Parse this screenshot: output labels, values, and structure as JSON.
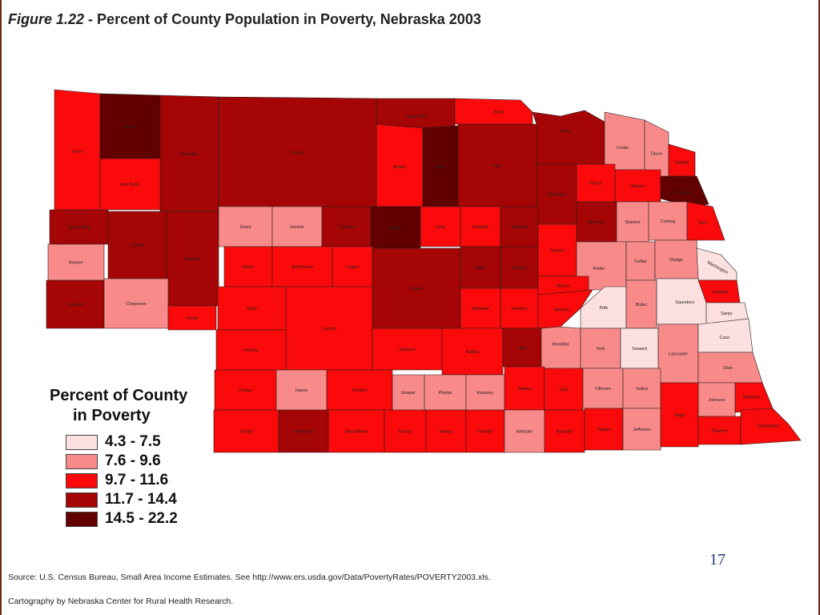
{
  "title": {
    "figure": "Figure 1.22",
    "separator": " - ",
    "text": "Percent of County Population in Poverty, Nebraska 2003"
  },
  "legend": {
    "title_line1": "Percent of County",
    "title_line2": "in Poverty",
    "classes": [
      {
        "label": "4.3 - 7.5",
        "color": "#fde0e0"
      },
      {
        "label": "7.6 - 9.6",
        "color": "#f98a8a"
      },
      {
        "label": "9.7 - 11.6",
        "color": "#fa0a0a"
      },
      {
        "label": "11.7 - 14.4",
        "color": "#a50505"
      },
      {
        "label": "14.5 - 22.2",
        "color": "#620000"
      }
    ]
  },
  "counties": [
    {
      "name": "Sioux",
      "class": 2
    },
    {
      "name": "Dawes",
      "class": 4
    },
    {
      "name": "Sheridan",
      "class": 3
    },
    {
      "name": "Cherry",
      "class": 3
    },
    {
      "name": "Keya Paha",
      "class": 3
    },
    {
      "name": "Boyd",
      "class": 2
    },
    {
      "name": "Brown",
      "class": 2
    },
    {
      "name": "Rock",
      "class": 4
    },
    {
      "name": "Holt",
      "class": 3
    },
    {
      "name": "Knox",
      "class": 3
    },
    {
      "name": "Cedar",
      "class": 1
    },
    {
      "name": "Dixon",
      "class": 1
    },
    {
      "name": "Dakota",
      "class": 2
    },
    {
      "name": "Box Butte",
      "class": 2
    },
    {
      "name": "Antelope",
      "class": 3
    },
    {
      "name": "Pierce",
      "class": 2
    },
    {
      "name": "Wayne",
      "class": 2
    },
    {
      "name": "Thurston",
      "class": 4
    },
    {
      "name": "Scotts Bluff",
      "class": 3
    },
    {
      "name": "Morrill",
      "class": 3
    },
    {
      "name": "Garden",
      "class": 3
    },
    {
      "name": "Grant",
      "class": 1
    },
    {
      "name": "Hooker",
      "class": 1
    },
    {
      "name": "Thomas",
      "class": 3
    },
    {
      "name": "Blaine",
      "class": 4
    },
    {
      "name": "Loup",
      "class": 2
    },
    {
      "name": "Garfield",
      "class": 2
    },
    {
      "name": "Wheeler",
      "class": 3
    },
    {
      "name": "Madison",
      "class": 3
    },
    {
      "name": "Stanton",
      "class": 1
    },
    {
      "name": "Cuming",
      "class": 1
    },
    {
      "name": "Burt",
      "class": 2
    },
    {
      "name": "Banner",
      "class": 1
    },
    {
      "name": "Arthur",
      "class": 2
    },
    {
      "name": "McPherson",
      "class": 2
    },
    {
      "name": "Logan",
      "class": 2
    },
    {
      "name": "Custer",
      "class": 3
    },
    {
      "name": "Valley",
      "class": 3
    },
    {
      "name": "Greeley",
      "class": 3
    },
    {
      "name": "Boone",
      "class": 2
    },
    {
      "name": "Platte",
      "class": 1
    },
    {
      "name": "Colfax",
      "class": 1
    },
    {
      "name": "Dodge",
      "class": 1
    },
    {
      "name": "Washington",
      "class": 0
    },
    {
      "name": "Kimball",
      "class": 3
    },
    {
      "name": "Cheyenne",
      "class": 1
    },
    {
      "name": "Deuel",
      "class": 2
    },
    {
      "name": "Keith",
      "class": 2
    },
    {
      "name": "Lincoln",
      "class": 2
    },
    {
      "name": "Sherman",
      "class": 2
    },
    {
      "name": "Howard",
      "class": 2
    },
    {
      "name": "Nance",
      "class": 2
    },
    {
      "name": "Merrick",
      "class": 2
    },
    {
      "name": "Polk",
      "class": 0
    },
    {
      "name": "Butler",
      "class": 1
    },
    {
      "name": "Saunders",
      "class": 0
    },
    {
      "name": "Douglas",
      "class": 2
    },
    {
      "name": "Sarpy",
      "class": 0
    },
    {
      "name": "Perkins",
      "class": 2
    },
    {
      "name": "Dawson",
      "class": 2
    },
    {
      "name": "Buffalo",
      "class": 2
    },
    {
      "name": "Hall",
      "class": 3
    },
    {
      "name": "Hamilton",
      "class": 1
    },
    {
      "name": "York",
      "class": 1
    },
    {
      "name": "Seward",
      "class": 0
    },
    {
      "name": "Lancaster",
      "class": 1
    },
    {
      "name": "Cass",
      "class": 0
    },
    {
      "name": "Otoe",
      "class": 1
    },
    {
      "name": "Chase",
      "class": 2
    },
    {
      "name": "Hayes",
      "class": 1
    },
    {
      "name": "Frontier",
      "class": 2
    },
    {
      "name": "Gosper",
      "class": 1
    },
    {
      "name": "Phelps",
      "class": 1
    },
    {
      "name": "Kearney",
      "class": 1
    },
    {
      "name": "Adams",
      "class": 2
    },
    {
      "name": "Clay",
      "class": 2
    },
    {
      "name": "Fillmore",
      "class": 1
    },
    {
      "name": "Saline",
      "class": 1
    },
    {
      "name": "Johnson",
      "class": 1
    },
    {
      "name": "Nemaha",
      "class": 2
    },
    {
      "name": "Dundy",
      "class": 2
    },
    {
      "name": "Hitchcock",
      "class": 3
    },
    {
      "name": "Red Willow",
      "class": 2
    },
    {
      "name": "Furnas",
      "class": 2
    },
    {
      "name": "Harlan",
      "class": 2
    },
    {
      "name": "Franklin",
      "class": 2
    },
    {
      "name": "Webster",
      "class": 1
    },
    {
      "name": "Nuckolls",
      "class": 2
    },
    {
      "name": "Thayer",
      "class": 2
    },
    {
      "name": "Jefferson",
      "class": 1
    },
    {
      "name": "Gage",
      "class": 2
    },
    {
      "name": "Pawnee",
      "class": 2
    },
    {
      "name": "Richardson",
      "class": 2
    }
  ],
  "page_number": "17",
  "source": "Source: U.S. Census Bureau, Small Area Income Estimates. See http://www.ers.usda.gov/Data/PovertyRates/POVERTY2003.xls.",
  "credit": "Cartography by Nebraska Center for Rural Health Research."
}
